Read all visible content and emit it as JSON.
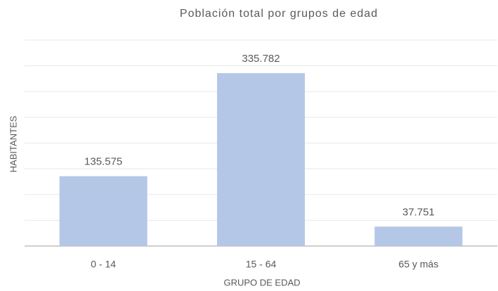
{
  "chart_data": {
    "type": "bar",
    "title": "Población total por grupos de edad",
    "x_label": "GRUPO DE EDAD",
    "y_label": "HABITANTES",
    "categories": [
      "0 - 14",
      "15 - 64",
      "65 y más"
    ],
    "values": [
      135575,
      335782,
      37751
    ],
    "value_labels": [
      "135.575",
      "335.782",
      "37.751"
    ],
    "color": "#b4c7e7",
    "ylim": [
      0,
      400000
    ],
    "yticks": [
      0,
      50000,
      100000,
      150000,
      200000,
      250000,
      300000,
      350000,
      400000
    ],
    "grid": true
  }
}
